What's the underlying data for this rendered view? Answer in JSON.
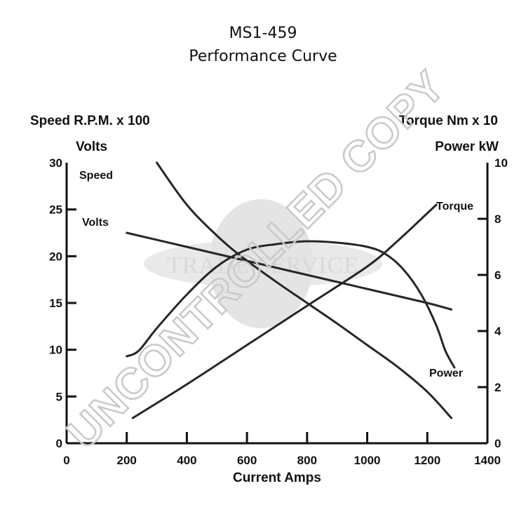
{
  "chart_data": {
    "type": "line",
    "title": "MS1-459",
    "subtitle": "Performance Curve",
    "xlabel": "Current Amps",
    "ylabel_left": [
      "Speed R.P.M. x 100",
      "Volts"
    ],
    "ylabel_right": [
      "Torque Nm x 10",
      "Power kW"
    ],
    "xlim": [
      0,
      1400
    ],
    "ylim_left": [
      0,
      30
    ],
    "ylim_right": [
      0,
      10
    ],
    "x_ticks": [
      0,
      200,
      400,
      600,
      800,
      1000,
      1200,
      1400
    ],
    "x_tick_labels": [
      "0",
      "200",
      "400",
      "600",
      "800",
      "1000",
      "1200",
      "1400"
    ],
    "y_left_ticks": [
      0,
      5,
      10,
      15,
      20,
      25,
      30
    ],
    "y_left_tick_labels": [
      "0",
      "5",
      "10",
      "15",
      "20",
      "25",
      "30"
    ],
    "y_right_ticks": [
      0,
      2,
      4,
      6,
      8,
      10
    ],
    "y_right_tick_labels": [
      "0",
      "2",
      "4",
      "6",
      "8",
      "10"
    ],
    "grid": false,
    "series": [
      {
        "name": "Speed",
        "axis": "left",
        "x": [
          300,
          400,
          500,
          580,
          700,
          800,
          900,
          1000,
          1100,
          1200,
          1280
        ],
        "y": [
          30,
          25.5,
          22.2,
          20,
          17.2,
          15,
          12.8,
          10.5,
          8.2,
          5.5,
          2.7
        ]
      },
      {
        "name": "Volts",
        "axis": "left",
        "x": [
          200,
          400,
          600,
          800,
          1000,
          1200,
          1280
        ],
        "y": [
          22.5,
          21,
          19.5,
          18,
          16.5,
          15,
          14.3
        ]
      },
      {
        "name": "Torque",
        "axis": "right",
        "x": [
          220,
          400,
          600,
          800,
          1000,
          1100,
          1200,
          1230
        ],
        "y": [
          0.9,
          2.1,
          3.5,
          4.9,
          6.3,
          7.2,
          8.2,
          8.5
        ]
      },
      {
        "name": "Power",
        "axis": "right",
        "x": [
          200,
          240,
          300,
          400,
          500,
          600,
          700,
          800,
          900,
          1000,
          1060,
          1120,
          1180,
          1230,
          1260,
          1290
        ],
        "y": [
          3.1,
          3.3,
          4.1,
          5.3,
          6.3,
          6.9,
          7.1,
          7.2,
          7.15,
          7.0,
          6.75,
          6.2,
          5.3,
          4.2,
          3.3,
          2.7
        ]
      }
    ]
  },
  "watermark": {
    "diagonal_text": "UNCONTROLLED COPY",
    "brand_text": "TRADE SERVICE"
  },
  "colors": {
    "line": "#262626",
    "axis": "#111111",
    "watermark": "#c9c9c9"
  }
}
